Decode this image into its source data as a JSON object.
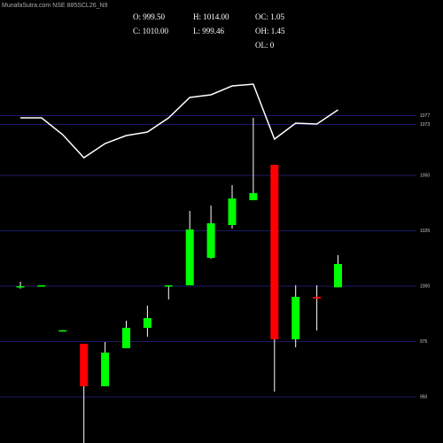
{
  "chart_data": {
    "type": "candlestick",
    "title": "MunafaSutra.com NSE 885SCL26_N9",
    "info": [
      "O: 999.50",
      "H: 1014.00",
      "OC: 1.05",
      "C: 1010.00",
      "L: 999.46",
      "OH: 1.45",
      "OL: 0"
    ],
    "open": [
      999.5,
      1000.2,
      980,
      974,
      954.8,
      972,
      981.2,
      1000,
      1000.4,
      1012.8,
      1027.6,
      1038.8,
      1054.8,
      976,
      995.2,
      999.5
    ],
    "high": [
      1002,
      1000.4,
      980.2,
      974,
      974.8,
      984.4,
      991.2,
      1000.4,
      1034,
      1036.4,
      1045.6,
      1076,
      1054.8,
      1000.4,
      1000.4,
      1014
    ],
    "low": [
      998.9,
      1000.1,
      979.8,
      929.2,
      954.8,
      972,
      977.2,
      994,
      1000.4,
      1012.4,
      1026,
      1038.8,
      952.4,
      972.4,
      980,
      999.46
    ],
    "close": [
      1000,
      1000.4,
      980.1,
      954.8,
      970,
      981.2,
      985.6,
      1000.4,
      1025.6,
      1028.4,
      1039.6,
      1042,
      976,
      995.2,
      994.4,
      1010
    ],
    "up_color": "#00ff00",
    "down_color": "#ff0000",
    "line": {
      "color": "#ffffff",
      "values": [
        1076,
        1076,
        1068.4,
        1058,
        1064.4,
        1068,
        1069.6,
        1076,
        1085.2,
        1086.4,
        1090.4,
        1091.2,
        1066.4,
        1073.6,
        1073.2,
        1079.6
      ]
    },
    "ylim": [
      929.2,
      1129.2
    ],
    "yticks": [
      950,
      975,
      1000,
      1025,
      1050,
      1073,
      1077
    ],
    "grid": true,
    "grid_color": "#1a1a66"
  }
}
